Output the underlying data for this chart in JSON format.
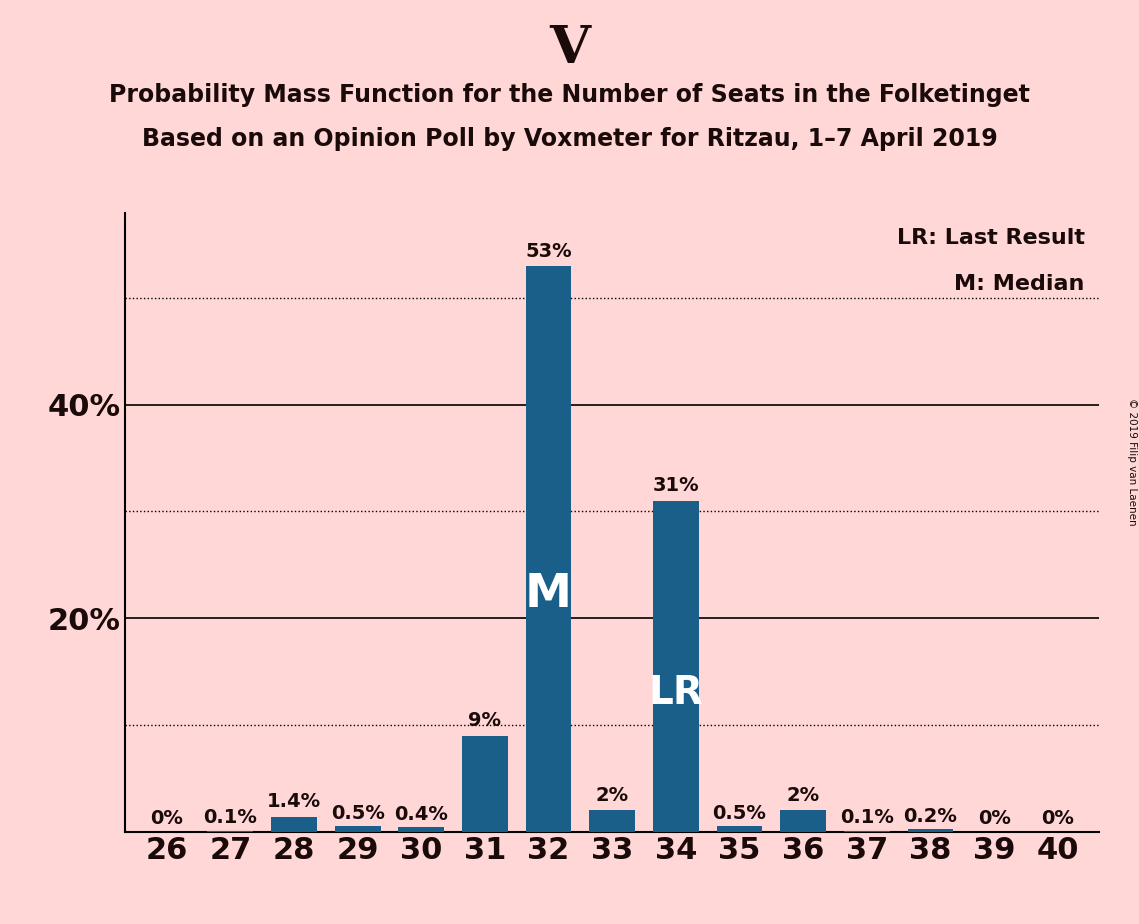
{
  "categories": [
    26,
    27,
    28,
    29,
    30,
    31,
    32,
    33,
    34,
    35,
    36,
    37,
    38,
    39,
    40
  ],
  "values": [
    0.0,
    0.1,
    1.4,
    0.5,
    0.4,
    9.0,
    53.0,
    2.0,
    31.0,
    0.5,
    2.0,
    0.1,
    0.2,
    0.0,
    0.0
  ],
  "labels": [
    "0%",
    "0.1%",
    "1.4%",
    "0.5%",
    "0.4%",
    "9%",
    "53%",
    "2%",
    "31%",
    "0.5%",
    "2%",
    "0.1%",
    "0.2%",
    "0%",
    "0%"
  ],
  "bar_color": "#1a5f8a",
  "background_color": "#ffd7d7",
  "title_letter": "V",
  "title_line1": "Probability Mass Function for the Number of Seats in the Folketinget",
  "title_line2": "Based on an Opinion Poll by Voxmeter for Ritzau, 1–7 April 2019",
  "median_bar": 32,
  "lr_bar": 34,
  "legend_lr": "LR: Last Result",
  "legend_m": "M: Median",
  "copyright": "© 2019 Filip van Laenen",
  "ytick_labeled": [
    20,
    40
  ],
  "solid_grid": [
    20,
    40
  ],
  "dotted_grid": [
    10,
    30,
    50
  ],
  "ylim": [
    0,
    58
  ],
  "label_fontsize": 14,
  "tick_fontsize": 22,
  "title_fontsize": 38,
  "subtitle_fontsize": 17,
  "legend_fontsize": 16
}
